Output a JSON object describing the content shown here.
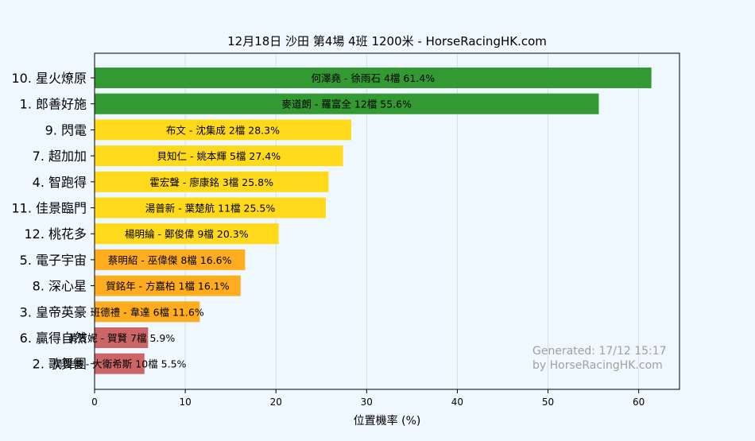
{
  "chart_data": {
    "type": "bar",
    "orientation": "horizontal",
    "title": "12月18日  沙田  第4場  4班  1200米 - HorseRacingHK.com",
    "xlabel": "位置機率 (%)",
    "ylabel": "",
    "xlim": [
      0,
      64.5
    ],
    "xticks": [
      0,
      10,
      20,
      30,
      40,
      50,
      60
    ],
    "grid": "vertical",
    "categories": [
      "10. 星火燎原",
      "1. 郎善好施",
      "9. 閃電",
      "7. 超加加",
      "4. 智跑得",
      "11. 佳景臨門",
      "12. 桃花多",
      "5. 電子宇宙",
      "8. 深心星",
      "3. 皇帝英豪",
      "6. 贏得自然",
      "2. 歌舞團"
    ],
    "values": [
      61.4,
      55.6,
      28.3,
      27.4,
      25.8,
      25.5,
      20.3,
      16.6,
      16.1,
      11.6,
      5.9,
      5.5
    ],
    "bar_labels": [
      "何澤堯 - 徐雨石 4檔  61.4%",
      "麥道朗 - 羅富全 12檔  55.6%",
      "布文 - 沈集成 2檔  28.3%",
      "貝知仁 - 姚本輝 5檔  27.4%",
      "霍宏聲 - 廖康銘 3檔  25.8%",
      "湯普新 - 葉楚航 11檔  25.5%",
      "楊明綸 - 鄭俊偉 9檔  20.3%",
      "蔡明紹 - 巫偉傑 8檔  16.6%",
      "賀銘年 - 方嘉柏 1檔  16.1%",
      "班德禮 - 韋達 6檔  11.6%",
      "黃寶妮 - 賀賢 7檔  5.9%",
      "周俊樂 - 大衛希斯 10檔  5.5%"
    ],
    "bar_colors": [
      "#339933",
      "#339933",
      "#ffd91a",
      "#ffd91a",
      "#ffd91a",
      "#ffd91a",
      "#ffd91a",
      "#ffad1f",
      "#ffad1f",
      "#ffad1f",
      "#cc6666",
      "#cc6666"
    ],
    "watermark": [
      "Generated: 17/12 15:17",
      "by HorseRacingHK.com"
    ]
  },
  "colors": {
    "background": "#f0f8ff",
    "grid": "#d4dde6",
    "axis": "#000000",
    "watermark": "#a0a0a0"
  }
}
